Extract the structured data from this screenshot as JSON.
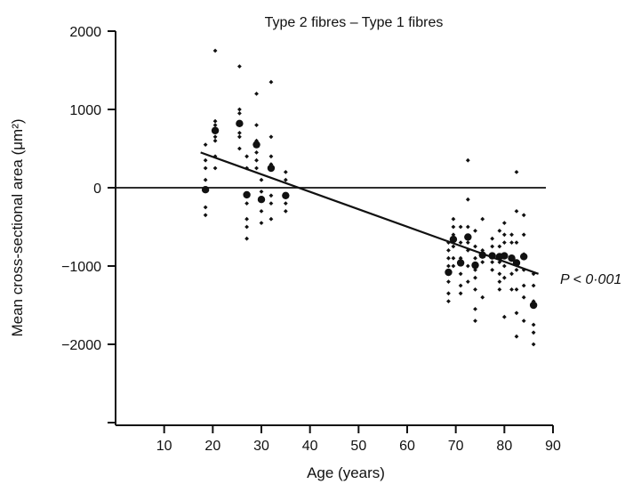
{
  "chart_data": {
    "type": "scatter",
    "title": "Type 2 fibres – Type 1 fibres",
    "xlabel": "Age (years)",
    "ylabel": "Mean cross-sectional area (μm²)",
    "xlim": [
      0,
      90
    ],
    "ylim": [
      -3000,
      2000
    ],
    "x_ticks": [
      10,
      20,
      30,
      40,
      50,
      60,
      70,
      80,
      90
    ],
    "y_ticks": [
      -2000,
      -1000,
      0,
      1000,
      2000
    ],
    "y_tick_labels": [
      "−2000",
      "−1000",
      "0",
      "1000",
      "2000"
    ],
    "reference_line_y": 0,
    "regression": {
      "x": [
        17.5,
        87
      ],
      "y": [
        450,
        -1100
      ]
    },
    "annotation": "P < 0·001",
    "colors": {
      "points": "#111111",
      "lines": "#111111"
    },
    "series": [
      {
        "marker": "small-diamond",
        "points": [
          [
            18.5,
            -350
          ],
          [
            18.5,
            -250
          ],
          [
            18.5,
            100
          ],
          [
            18.5,
            250
          ],
          [
            18.5,
            350
          ],
          [
            18.5,
            550
          ],
          [
            20.5,
            1750
          ],
          [
            20.5,
            850
          ],
          [
            20.5,
            800
          ],
          [
            20.5,
            650
          ],
          [
            20.5,
            600
          ],
          [
            20.5,
            400
          ],
          [
            20.5,
            250
          ],
          [
            25.5,
            1550
          ],
          [
            25.5,
            1000
          ],
          [
            25.5,
            950
          ],
          [
            25.5,
            700
          ],
          [
            25.5,
            650
          ],
          [
            25.5,
            500
          ],
          [
            27,
            400
          ],
          [
            27,
            250
          ],
          [
            27,
            -200
          ],
          [
            27,
            -400
          ],
          [
            27,
            -500
          ],
          [
            27,
            -650
          ],
          [
            29,
            1200
          ],
          [
            29,
            800
          ],
          [
            29,
            600
          ],
          [
            29,
            450
          ],
          [
            29,
            350
          ],
          [
            29,
            250
          ],
          [
            30,
            100
          ],
          [
            30,
            -50
          ],
          [
            30,
            -300
          ],
          [
            30,
            -450
          ],
          [
            32,
            1350
          ],
          [
            32,
            650
          ],
          [
            32,
            400
          ],
          [
            32,
            300
          ],
          [
            32,
            -100
          ],
          [
            32,
            -200
          ],
          [
            32,
            -400
          ],
          [
            35,
            200
          ],
          [
            35,
            100
          ],
          [
            35,
            -100
          ],
          [
            35,
            -200
          ],
          [
            35,
            -300
          ],
          [
            68.5,
            -700
          ],
          [
            68.5,
            -800
          ],
          [
            68.5,
            -900
          ],
          [
            68.5,
            -1000
          ],
          [
            68.5,
            -1100
          ],
          [
            68.5,
            -1200
          ],
          [
            68.5,
            -1350
          ],
          [
            68.5,
            -1450
          ],
          [
            69.5,
            -400
          ],
          [
            69.5,
            -500
          ],
          [
            69.5,
            -600
          ],
          [
            69.5,
            -750
          ],
          [
            69.5,
            -900
          ],
          [
            69.5,
            -1000
          ],
          [
            71,
            -500
          ],
          [
            71,
            -700
          ],
          [
            71,
            -900
          ],
          [
            71,
            -1100
          ],
          [
            71,
            -1250
          ],
          [
            71,
            -1350
          ],
          [
            72.5,
            350
          ],
          [
            72.5,
            -150
          ],
          [
            72.5,
            -500
          ],
          [
            72.5,
            -700
          ],
          [
            72.5,
            -800
          ],
          [
            72.5,
            -1000
          ],
          [
            72.5,
            -1200
          ],
          [
            74,
            -550
          ],
          [
            74,
            -750
          ],
          [
            74,
            -900
          ],
          [
            74,
            -1050
          ],
          [
            74,
            -1150
          ],
          [
            74,
            -1300
          ],
          [
            74,
            -1550
          ],
          [
            74,
            -1700
          ],
          [
            75.5,
            -400
          ],
          [
            75.5,
            -800
          ],
          [
            75.5,
            -950
          ],
          [
            75.5,
            -1400
          ],
          [
            77.5,
            -650
          ],
          [
            77.5,
            -750
          ],
          [
            77.5,
            -950
          ],
          [
            77.5,
            -1050
          ],
          [
            79,
            -550
          ],
          [
            79,
            -750
          ],
          [
            79,
            -950
          ],
          [
            79,
            -1100
          ],
          [
            79,
            -1200
          ],
          [
            79,
            -1300
          ],
          [
            80,
            -450
          ],
          [
            80,
            -600
          ],
          [
            80,
            -700
          ],
          [
            80,
            -1000
          ],
          [
            80,
            -1150
          ],
          [
            80,
            -1650
          ],
          [
            81.5,
            -600
          ],
          [
            81.5,
            -700
          ],
          [
            81.5,
            -1100
          ],
          [
            81.5,
            -1300
          ],
          [
            82.5,
            200
          ],
          [
            82.5,
            -300
          ],
          [
            82.5,
            -700
          ],
          [
            82.5,
            -1050
          ],
          [
            82.5,
            -1300
          ],
          [
            82.5,
            -1600
          ],
          [
            82.5,
            -1900
          ],
          [
            84,
            -350
          ],
          [
            84,
            -600
          ],
          [
            84,
            -850
          ],
          [
            84,
            -1050
          ],
          [
            84,
            -1250
          ],
          [
            84,
            -1400
          ],
          [
            84,
            -1700
          ],
          [
            86,
            -1100
          ],
          [
            86,
            -1250
          ],
          [
            86,
            -1450
          ],
          [
            86,
            -1750
          ],
          [
            86,
            -1850
          ],
          [
            86,
            -2000
          ]
        ]
      },
      {
        "marker": "large-dot",
        "points": [
          [
            18.5,
            -25
          ],
          [
            20.5,
            730
          ],
          [
            25.5,
            820
          ],
          [
            27,
            -90
          ],
          [
            29,
            550
          ],
          [
            30,
            -150
          ],
          [
            32,
            250
          ],
          [
            35,
            -100
          ],
          [
            68.5,
            -1080
          ],
          [
            69.5,
            -660
          ],
          [
            71,
            -960
          ],
          [
            72.5,
            -630
          ],
          [
            74,
            -990
          ],
          [
            75.5,
            -860
          ],
          [
            77.5,
            -870
          ],
          [
            79,
            -880
          ],
          [
            80,
            -870
          ],
          [
            81.5,
            -900
          ],
          [
            82.5,
            -960
          ],
          [
            84,
            -880
          ],
          [
            86,
            -1500
          ]
        ]
      }
    ]
  }
}
